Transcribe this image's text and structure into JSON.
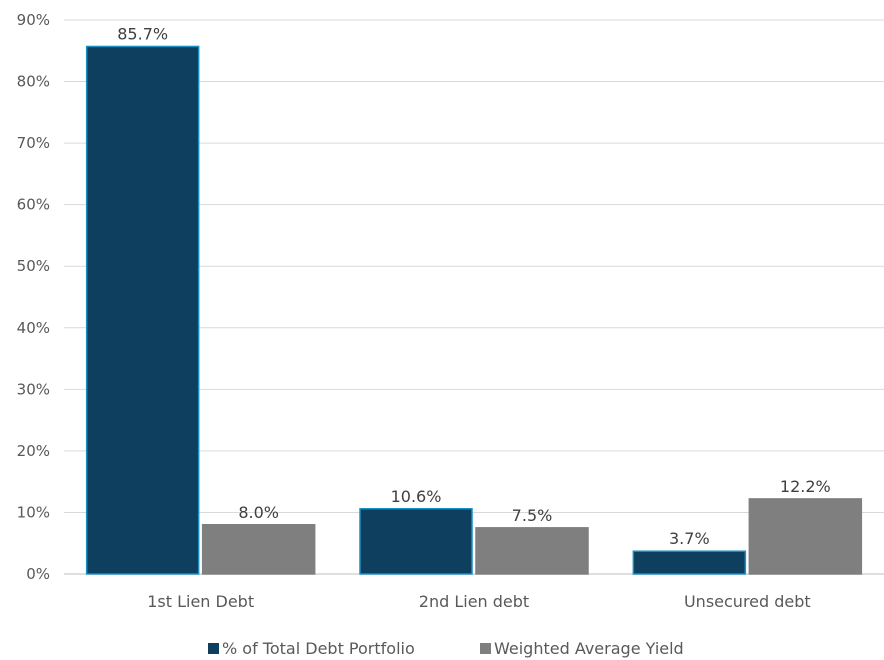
{
  "chart_data": {
    "type": "bar",
    "categories": [
      "1st Lien Debt",
      "2nd Lien debt",
      "Unsecured debt"
    ],
    "series": [
      {
        "name": "% of Total Debt Portfolio",
        "values": [
          85.7,
          10.6,
          3.7
        ],
        "labels": [
          "85.7%",
          "10.6%",
          "3.7%"
        ],
        "color": "#0f3f5e",
        "stroke": "#1a8fc4"
      },
      {
        "name": "Weighted Average Yield",
        "values": [
          8.0,
          7.5,
          12.2
        ],
        "labels": [
          "8.0%",
          "7.5%",
          "12.2%"
        ],
        "color": "#7f7f7f",
        "stroke": "#7f7f7f"
      }
    ],
    "ylim": [
      0,
      90
    ],
    "yticks": [
      0,
      10,
      20,
      30,
      40,
      50,
      60,
      70,
      80,
      90
    ],
    "ytick_labels": [
      "0%",
      "10%",
      "20%",
      "30%",
      "40%",
      "50%",
      "60%",
      "70%",
      "80%",
      "90%"
    ],
    "title": "",
    "xlabel": "",
    "ylabel": "",
    "grid": true,
    "legend_position": "bottom"
  }
}
